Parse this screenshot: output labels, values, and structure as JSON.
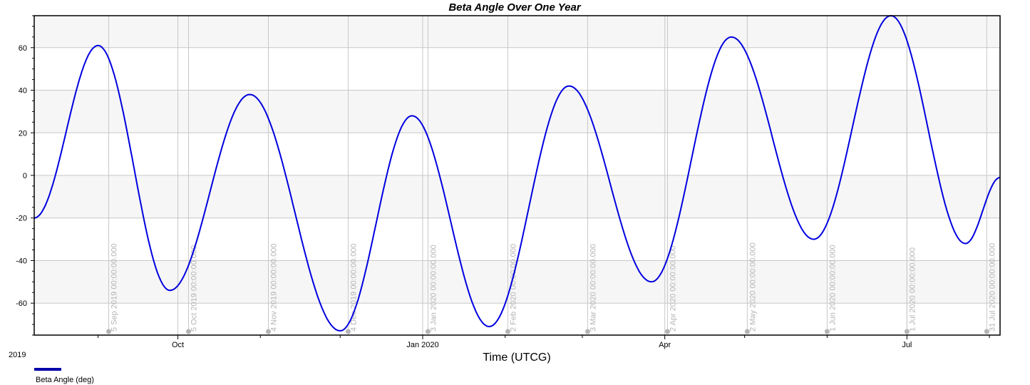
{
  "chart_data": {
    "type": "line",
    "title": "Beta Angle Over One Year",
    "xlabel": "Time (UTCG)",
    "year_label": "2019",
    "ylim": [
      -75,
      75
    ],
    "y_ticks": [
      60,
      40,
      20,
      0,
      -20,
      -40,
      -60
    ],
    "shaded_bands": [
      [
        60,
        75
      ],
      [
        20,
        40
      ],
      [
        -20,
        0
      ],
      [
        -60,
        -40
      ]
    ],
    "x_range": [
      "2019-08-08",
      "2020-08-05"
    ],
    "x_ticks": [
      {
        "label": "Oct",
        "date": "2019-10-01"
      },
      {
        "label": "Jan 2020",
        "date": "2020-01-01"
      },
      {
        "label": "Apr",
        "date": "2020-04-01"
      },
      {
        "label": "Jul",
        "date": "2020-07-01"
      }
    ],
    "date_markers": [
      {
        "label": "5 Sep 2019 00:00:00.000",
        "date": "2019-09-05"
      },
      {
        "label": "5 Oct 2019 00:00:00.000",
        "date": "2019-10-05"
      },
      {
        "label": "4 Nov 2019 00:00:00.000",
        "date": "2019-11-04"
      },
      {
        "label": "4 Dec 2019 00:00:00.000",
        "date": "2019-12-04"
      },
      {
        "label": "3 Jan 2020 00:00:00.000",
        "date": "2020-01-03"
      },
      {
        "label": "2 Feb 2020 00:00:00.000",
        "date": "2020-02-02"
      },
      {
        "label": "3 Mar 2020 00:00:00.000",
        "date": "2020-03-03"
      },
      {
        "label": "2 Apr 2020 00:00:00.000",
        "date": "2020-04-02"
      },
      {
        "label": "2 May 2020 00:00:00.000",
        "date": "2020-05-02"
      },
      {
        "label": "1 Jun 2020 00:00:00.000",
        "date": "2020-06-01"
      },
      {
        "label": "1 Jul 2020 00:00:00.000",
        "date": "2020-07-01"
      },
      {
        "label": "31 Jul 2020 00:00:00.000",
        "date": "2020-07-31"
      }
    ],
    "series": [
      {
        "name": "Beta Angle (deg)",
        "color": "#0000e0",
        "points": [
          [
            "2019-08-08",
            -20
          ],
          [
            "2019-09-01",
            61
          ],
          [
            "2019-09-28",
            -54
          ],
          [
            "2019-10-28",
            38
          ],
          [
            "2019-12-01",
            -73
          ],
          [
            "2019-12-28",
            28
          ],
          [
            "2020-01-26",
            -71
          ],
          [
            "2020-02-25",
            42
          ],
          [
            "2020-03-27",
            -50
          ],
          [
            "2020-04-26",
            65
          ],
          [
            "2020-05-27",
            -30
          ],
          [
            "2020-06-25",
            75
          ],
          [
            "2020-07-23",
            -32
          ],
          [
            "2020-08-05",
            -1
          ]
        ]
      }
    ],
    "legend": {
      "placement": "bottom-left",
      "entries": [
        "Beta Angle (deg)"
      ]
    },
    "grid": true
  }
}
